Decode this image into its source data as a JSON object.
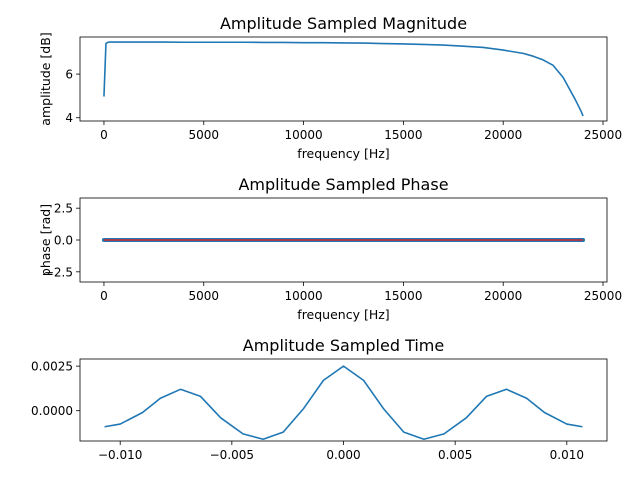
{
  "chart_data": [
    {
      "type": "line",
      "title": "Amplitude Sampled Magnitude",
      "xlabel": "frequency [Hz]",
      "ylabel": "amplitude [dB]",
      "xlim": [
        -1200,
        25200
      ],
      "ylim": [
        3.85,
        7.7
      ],
      "xticks": [
        0,
        5000,
        10000,
        15000,
        20000,
        25000
      ],
      "yticks": [
        4,
        6
      ],
      "grid": false,
      "series": [
        {
          "color": "#1f77b4",
          "x": [
            0,
            100,
            200,
            300,
            600,
            1000,
            2000,
            3000,
            4000,
            5000,
            6000,
            7000,
            8000,
            9000,
            10000,
            11000,
            12000,
            13000,
            14000,
            15000,
            16000,
            17000,
            18000,
            19000,
            20000,
            21000,
            21500,
            22000,
            22500,
            23000,
            23300,
            23600,
            23900,
            24000
          ],
          "y": [
            4.97,
            7.4,
            7.46,
            7.47,
            7.47,
            7.47,
            7.47,
            7.47,
            7.46,
            7.46,
            7.46,
            7.46,
            7.45,
            7.45,
            7.44,
            7.44,
            7.43,
            7.42,
            7.4,
            7.38,
            7.36,
            7.33,
            7.28,
            7.22,
            7.1,
            6.95,
            6.82,
            6.65,
            6.4,
            5.85,
            5.35,
            4.85,
            4.3,
            4.08
          ]
        }
      ]
    },
    {
      "type": "line",
      "title": "Amplitude Sampled Phase",
      "xlabel": "frequency [Hz]",
      "ylabel": "phase [rad]",
      "xlim": [
        -1200,
        25200
      ],
      "ylim": [
        -3.3,
        3.3
      ],
      "xticks": [
        0,
        5000,
        10000,
        15000,
        20000,
        25000
      ],
      "yticks": [
        -2.5,
        0.0,
        2.5
      ],
      "grid": false,
      "series": [
        {
          "color": "#1f77b4",
          "x": [
            0,
            24000
          ],
          "y": [
            0.0,
            0.0
          ]
        },
        {
          "color": "#d62728",
          "x": [
            0,
            24000
          ],
          "y": [
            0.0,
            0.0
          ]
        }
      ]
    },
    {
      "type": "line",
      "title": "Amplitude Sampled Time",
      "xlabel": "",
      "ylabel": "",
      "xlim": [
        -0.0118,
        0.0118
      ],
      "ylim": [
        -0.0017,
        0.0029
      ],
      "xticks": [
        -0.01,
        -0.005,
        0.0,
        0.005,
        0.01
      ],
      "yticks": [
        0.0,
        0.0025
      ],
      "grid": false,
      "series": [
        {
          "color": "#1f77b4",
          "x": [
            -0.0107,
            -0.01,
            -0.009,
            -0.0082,
            -0.0073,
            -0.0064,
            -0.0055,
            -0.0045,
            -0.0036,
            -0.0027,
            -0.0018,
            -0.0009,
            0.0,
            0.0009,
            0.0018,
            0.0027,
            0.0036,
            0.0045,
            0.0055,
            0.0064,
            0.0073,
            0.0082,
            0.009,
            0.01,
            0.0107
          ],
          "y": [
            -0.0009,
            -0.00075,
            -0.0001,
            0.0007,
            0.0012,
            0.0008,
            -0.0004,
            -0.0013,
            -0.0016,
            -0.0012,
            0.0001,
            0.0017,
            0.0025,
            0.0017,
            0.0001,
            -0.0012,
            -0.0016,
            -0.0013,
            -0.0004,
            0.0008,
            0.0012,
            0.0007,
            -0.0001,
            -0.00075,
            -0.0009
          ]
        }
      ]
    }
  ]
}
